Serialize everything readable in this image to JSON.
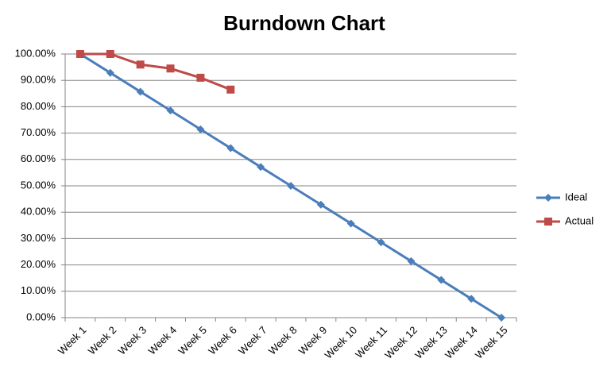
{
  "chart_data": {
    "type": "line",
    "title": "Burndown Chart",
    "categories": [
      "Week 1",
      "Week 2",
      "Week 3",
      "Week 4",
      "Week 5",
      "Week 6",
      "Week 7",
      "Week 8",
      "Week 9",
      "Week 10",
      "Week 11",
      "Week 12",
      "Week 13",
      "Week 14",
      "Week 15"
    ],
    "series": [
      {
        "name": "Ideal",
        "color": "#4a7ebb",
        "marker": "diamond",
        "values": [
          100,
          92.86,
          85.71,
          78.57,
          71.43,
          64.29,
          57.14,
          50,
          42.86,
          35.71,
          28.57,
          21.43,
          14.29,
          7.14,
          0
        ]
      },
      {
        "name": "Actual",
        "color": "#be4b48",
        "marker": "square",
        "values": [
          100,
          100,
          96,
          94.5,
          91,
          86.5,
          null,
          null,
          null,
          null,
          null,
          null,
          null,
          null,
          null
        ]
      }
    ],
    "ylim": [
      0,
      100
    ],
    "yticks": [
      {
        "value": 0,
        "label": "0.00%"
      },
      {
        "value": 10,
        "label": "10.00%"
      },
      {
        "value": 20,
        "label": "20.00%"
      },
      {
        "value": 30,
        "label": "30.00%"
      },
      {
        "value": 40,
        "label": "40.00%"
      },
      {
        "value": 50,
        "label": "50.00%"
      },
      {
        "value": 60,
        "label": "60.00%"
      },
      {
        "value": 70,
        "label": "70.00%"
      },
      {
        "value": 80,
        "label": "80.00%"
      },
      {
        "value": 90,
        "label": "90.00%"
      },
      {
        "value": 100,
        "label": "100.00%"
      }
    ],
    "grid": true,
    "legend": "right"
  }
}
